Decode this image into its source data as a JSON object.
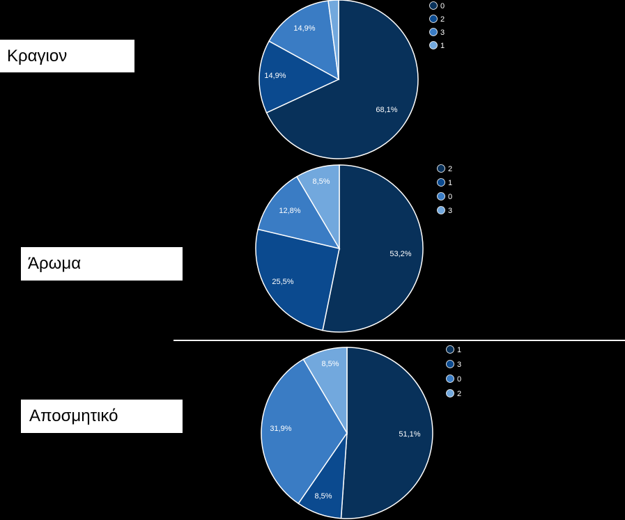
{
  "chart_data": [
    {
      "type": "pie",
      "title": "Κραγιον",
      "slices": [
        {
          "name": "0",
          "value": 68.1,
          "label": "68,1%",
          "color": "#08315a"
        },
        {
          "name": "2",
          "value": 14.9,
          "label": "14,9%",
          "color": "#0b4a8f"
        },
        {
          "name": "3",
          "value": 14.9,
          "label": "14,9%",
          "color": "#3a7cc4"
        },
        {
          "name": "1",
          "value": 2.1,
          "label": "",
          "color": "#72a8dd"
        }
      ],
      "legend_position": "top-right"
    },
    {
      "type": "pie",
      "title": "Άρωμα",
      "slices": [
        {
          "name": "2",
          "value": 53.2,
          "label": "53,2%",
          "color": "#08315a"
        },
        {
          "name": "1",
          "value": 25.5,
          "label": "25,5%",
          "color": "#0b4a8f"
        },
        {
          "name": "0",
          "value": 12.8,
          "label": "12,8%",
          "color": "#3a7cc4"
        },
        {
          "name": "3",
          "value": 8.5,
          "label": "8,5%",
          "color": "#72a8dd"
        }
      ],
      "legend_position": "top-right"
    },
    {
      "type": "pie",
      "title": "Αποσμητικό",
      "slices": [
        {
          "name": "1",
          "value": 51.1,
          "label": "51,1%",
          "color": "#08315a"
        },
        {
          "name": "3",
          "value": 8.5,
          "label": "8,5%",
          "color": "#0b4a8f"
        },
        {
          "name": "0",
          "value": 31.9,
          "label": "31,9%",
          "color": "#3a7cc4"
        },
        {
          "name": "2",
          "value": 8.5,
          "label": "8,5%",
          "color": "#72a8dd"
        }
      ],
      "legend_position": "top-right"
    }
  ]
}
